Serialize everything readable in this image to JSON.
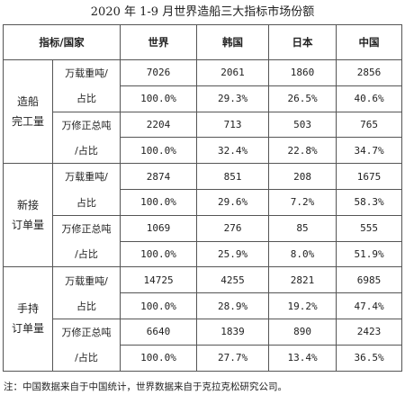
{
  "title": "2020 年 1-9 月世界造船三大指标市场份额",
  "table": {
    "header": [
      "指标/国家",
      "世界",
      "韩国",
      "日本",
      "中国"
    ],
    "groups": [
      {
        "label": [
          "造船",
          "完工量"
        ],
        "rows": [
          {
            "metric": "万载重吨/",
            "values": [
              "7026",
              "2061",
              "1860",
              "2856"
            ]
          },
          {
            "metric": "占比",
            "values": [
              "100.0%",
              "29.3%",
              "26.5%",
              "40.6%"
            ]
          },
          {
            "metric": "万修正总吨",
            "values": [
              "2204",
              "713",
              "503",
              "765"
            ]
          },
          {
            "metric": "/占比",
            "values": [
              "100.0%",
              "32.4%",
              "22.8%",
              "34.7%"
            ]
          }
        ]
      },
      {
        "label": [
          "新接",
          "订单量"
        ],
        "rows": [
          {
            "metric": "万载重吨/",
            "values": [
              "2874",
              "851",
              "208",
              "1675"
            ]
          },
          {
            "metric": "占比",
            "values": [
              "100.0%",
              "29.6%",
              "7.2%",
              "58.3%"
            ]
          },
          {
            "metric": "万修正总吨",
            "values": [
              "1069",
              "276",
              "85",
              "555"
            ]
          },
          {
            "metric": "/占比",
            "values": [
              "100.0%",
              "25.9%",
              "8.0%",
              "51.9%"
            ]
          }
        ]
      },
      {
        "label": [
          "手持",
          "订单量"
        ],
        "rows": [
          {
            "metric": "万载重吨/",
            "values": [
              "14725",
              "4255",
              "2821",
              "6985"
            ]
          },
          {
            "metric": "占比",
            "values": [
              "100.0%",
              "28.9%",
              "19.2%",
              "47.4%"
            ]
          },
          {
            "metric": "万修正总吨",
            "values": [
              "6640",
              "1839",
              "890",
              "2423"
            ]
          },
          {
            "metric": "/占比",
            "values": [
              "100.0%",
              "27.7%",
              "13.4%",
              "36.5%"
            ]
          }
        ]
      }
    ]
  },
  "note": "注：中国数据来自于中国统计，世界数据来自于克拉克松研究公司。"
}
